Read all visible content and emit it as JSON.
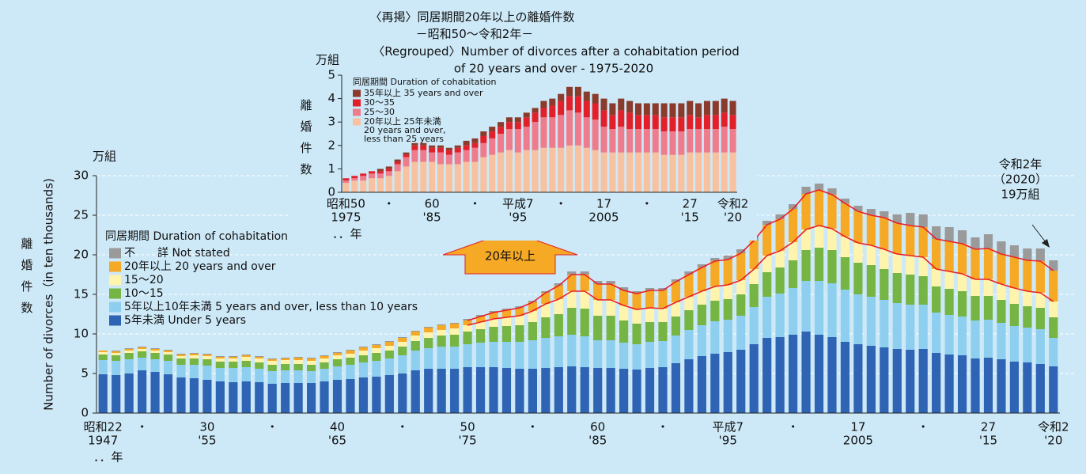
{
  "chart_data": [
    {
      "type": "bar",
      "stacked": true,
      "y_unit": "万組",
      "ylabel": "離婚件数",
      "ylabel_en": "Number of divorces（in ten thousands)",
      "x_unit": "．．年",
      "legend_title": "同居期間 Duration of cohabitation",
      "arrow_label": "20年以上",
      "callout": [
        "令和2年",
        "（2020）",
        "19万組"
      ],
      "ylim": [
        0,
        30
      ],
      "yticks": [
        0,
        5,
        10,
        15,
        20,
        25,
        30
      ],
      "grid": true,
      "outline_color": "#e8202a",
      "categories": [
        {
          "era": "昭和22",
          "year": "1947"
        },
        null,
        null,
        "・",
        null,
        null,
        null,
        null,
        {
          "era": "30",
          "year": "'55"
        },
        null,
        null,
        null,
        null,
        "・",
        null,
        null,
        null,
        null,
        {
          "era": "40",
          "year": "'65"
        },
        null,
        null,
        null,
        null,
        "・",
        null,
        null,
        null,
        null,
        {
          "era": "50",
          "year": "'75"
        },
        null,
        null,
        null,
        null,
        "・",
        null,
        null,
        null,
        null,
        {
          "era": "60",
          "year": "'85"
        },
        null,
        null,
        null,
        null,
        "・",
        null,
        null,
        null,
        null,
        {
          "era": "平成7",
          "year": "'95"
        },
        null,
        null,
        null,
        null,
        "・",
        null,
        null,
        null,
        null,
        {
          "era": "17",
          "year": "2005"
        },
        null,
        null,
        null,
        null,
        "・",
        null,
        null,
        null,
        null,
        {
          "era": "27",
          "year": "'15"
        },
        null,
        null,
        null,
        null,
        {
          "era": "令和2",
          "year": "'20"
        }
      ],
      "series": [
        {
          "name": "5年未満 Under 5 years",
          "color": "#2f63b3",
          "values": [
            4.9,
            4.8,
            5.0,
            5.4,
            5.2,
            4.9,
            4.5,
            4.4,
            4.2,
            4.0,
            3.9,
            4.0,
            3.9,
            3.7,
            3.8,
            3.8,
            3.8,
            4.0,
            4.2,
            4.3,
            4.5,
            4.6,
            4.8,
            5.0,
            5.4,
            5.6,
            5.6,
            5.6,
            5.8,
            5.8,
            5.8,
            5.7,
            5.6,
            5.6,
            5.7,
            5.8,
            5.9,
            5.8,
            5.7,
            5.7,
            5.6,
            5.5,
            5.7,
            5.8,
            6.3,
            6.8,
            7.2,
            7.5,
            7.7,
            8.0,
            8.7,
            9.5,
            9.6,
            9.9,
            10.3,
            9.9,
            9.6,
            9.0,
            8.7,
            8.5,
            8.3,
            8.1,
            8.0,
            8.1,
            7.6,
            7.4,
            7.3,
            6.9,
            7.0,
            6.8,
            6.5,
            6.4,
            6.2,
            5.9
          ]
        },
        {
          "name": "5年以上10年未満 5 years and over, less than 10 years",
          "color": "#8ecff0",
          "values": [
            1.8,
            1.8,
            1.8,
            1.6,
            1.6,
            1.7,
            1.6,
            1.7,
            1.8,
            1.7,
            1.8,
            1.8,
            1.7,
            1.6,
            1.6,
            1.6,
            1.5,
            1.6,
            1.7,
            1.8,
            1.9,
            2.0,
            2.1,
            2.3,
            2.5,
            2.6,
            2.8,
            2.8,
            2.9,
            3.1,
            3.2,
            3.3,
            3.4,
            3.6,
            3.8,
            3.9,
            4.0,
            3.9,
            3.5,
            3.5,
            3.3,
            3.2,
            3.3,
            3.3,
            3.5,
            3.7,
            3.9,
            4.1,
            4.1,
            4.3,
            4.7,
            5.2,
            5.5,
            5.9,
            6.4,
            6.8,
            6.8,
            6.6,
            6.3,
            6.2,
            6.0,
            5.8,
            5.7,
            5.6,
            5.1,
            5.0,
            4.9,
            4.8,
            4.8,
            4.6,
            4.5,
            4.4,
            4.4,
            3.6
          ]
        },
        {
          "name": "10～15",
          "color": "#76b443",
          "values": [
            0.7,
            0.7,
            0.8,
            0.8,
            0.8,
            0.8,
            0.8,
            0.8,
            0.8,
            0.8,
            0.8,
            0.8,
            0.8,
            0.8,
            0.8,
            0.8,
            0.8,
            0.8,
            0.9,
            0.9,
            0.9,
            1.0,
            1.0,
            1.1,
            1.2,
            1.3,
            1.4,
            1.5,
            1.6,
            1.7,
            1.9,
            2.0,
            2.1,
            2.3,
            2.6,
            2.8,
            3.4,
            3.5,
            3.1,
            3.1,
            2.8,
            2.6,
            2.5,
            2.4,
            2.4,
            2.5,
            2.6,
            2.6,
            2.6,
            2.7,
            2.9,
            3.1,
            3.3,
            3.5,
            3.9,
            4.2,
            4.2,
            4.1,
            4.0,
            4.0,
            3.9,
            3.8,
            3.8,
            3.6,
            3.3,
            3.3,
            3.2,
            3.1,
            3.0,
            2.9,
            2.8,
            2.7,
            2.7,
            2.6
          ]
        },
        {
          "name": "15～20",
          "color": "#fff4ad",
          "values": [
            0.3,
            0.3,
            0.3,
            0.3,
            0.3,
            0.3,
            0.3,
            0.4,
            0.4,
            0.4,
            0.4,
            0.5,
            0.5,
            0.5,
            0.5,
            0.5,
            0.5,
            0.5,
            0.5,
            0.5,
            0.6,
            0.6,
            0.6,
            0.6,
            0.7,
            0.7,
            0.7,
            0.8,
            0.8,
            0.9,
            1.0,
            1.1,
            1.2,
            1.4,
            1.7,
            1.9,
            2.1,
            2.2,
            2.0,
            2.0,
            1.9,
            1.8,
            1.8,
            1.7,
            1.8,
            1.7,
            1.7,
            1.8,
            1.8,
            1.8,
            1.9,
            2.1,
            2.1,
            2.3,
            2.6,
            2.8,
            2.7,
            2.6,
            2.5,
            2.5,
            2.5,
            2.4,
            2.4,
            2.4,
            2.2,
            2.2,
            2.2,
            2.1,
            2.1,
            2.0,
            2.0,
            1.9,
            1.9,
            2.0
          ]
        },
        {
          "name": "20年以上 20 years and over",
          "color": "#f6a925",
          "values": [
            0.2,
            0.2,
            0.2,
            0.2,
            0.2,
            0.2,
            0.2,
            0.2,
            0.2,
            0.2,
            0.2,
            0.2,
            0.2,
            0.2,
            0.2,
            0.3,
            0.3,
            0.3,
            0.3,
            0.4,
            0.4,
            0.4,
            0.5,
            0.5,
            0.5,
            0.6,
            0.6,
            0.6,
            0.6,
            0.7,
            0.8,
            0.9,
            1.0,
            1.1,
            1.4,
            1.7,
            2.1,
            2.1,
            2.0,
            2.0,
            1.9,
            2.0,
            2.2,
            2.3,
            2.6,
            2.8,
            3.0,
            3.2,
            3.2,
            3.4,
            3.6,
            3.9,
            4.0,
            4.2,
            4.5,
            4.5,
            4.3,
            4.2,
            4.0,
            3.8,
            4.0,
            3.9,
            3.8,
            3.8,
            3.8,
            3.8,
            3.8,
            3.8,
            3.9,
            3.8,
            3.9,
            3.9,
            4.0,
            3.9
          ]
        },
        {
          "name": "不　　詳 Not stated",
          "color": "#9a9a9a",
          "values": [
            0,
            0.1,
            0.1,
            0.1,
            0.1,
            0.1,
            0.1,
            0.1,
            0.1,
            0.1,
            0.1,
            0.1,
            0.1,
            0.1,
            0.1,
            0.1,
            0.1,
            0.1,
            0.1,
            0.1,
            0.1,
            0.1,
            0.1,
            0.1,
            0.1,
            0.1,
            0.1,
            0.1,
            0.2,
            0.2,
            0.2,
            0.2,
            0.2,
            0.2,
            0.2,
            0.3,
            0.4,
            0.4,
            0.4,
            0.4,
            0.4,
            0.3,
            0.3,
            0.3,
            0.3,
            0.4,
            0.4,
            0.4,
            0.5,
            0.5,
            0.5,
            0.5,
            0.6,
            0.6,
            0.9,
            0.8,
            0.8,
            0.6,
            0.7,
            0.8,
            0.8,
            1.1,
            1.6,
            1.6,
            1.6,
            1.8,
            1.7,
            1.5,
            1.8,
            1.6,
            1.5,
            1.5,
            1.6,
            1.3
          ]
        }
      ]
    },
    {
      "type": "bar",
      "stacked": true,
      "title": [
        "〈再掲〉同居期間20年以上の離婚件数",
        "－昭和50～令和2年－",
        "〈Regrouped〉Number of divorces after a cohabitation period",
        "of 20 years and over - 1975-2020"
      ],
      "y_unit": "万組",
      "ylabel": "離婚件数",
      "x_unit": "．．年",
      "legend_title": "同居期間 Duration of cohabitation",
      "ylim": [
        0,
        5
      ],
      "yticks": [
        0,
        1,
        2,
        3,
        4,
        5
      ],
      "grid": false,
      "categories": [
        {
          "era": "昭和50",
          "year": "1975"
        },
        null,
        null,
        null,
        null,
        "・",
        null,
        null,
        null,
        null,
        {
          "era": "60",
          "year": "'85"
        },
        null,
        null,
        null,
        null,
        "・",
        null,
        null,
        null,
        null,
        {
          "era": "平成7",
          "year": "'95"
        },
        null,
        null,
        null,
        null,
        "・",
        null,
        null,
        null,
        null,
        {
          "era": "17",
          "year": "2005"
        },
        null,
        null,
        null,
        null,
        "・",
        null,
        null,
        null,
        null,
        {
          "era": "27",
          "year": "'15"
        },
        null,
        null,
        null,
        null,
        {
          "era": "令和2",
          "year": "'20"
        }
      ],
      "series": [
        {
          "name": [
            "20年以上 25年未満",
            "20 years and over,",
            "less than 25 years"
          ],
          "color": "#f8c19f",
          "values": [
            0.4,
            0.5,
            0.5,
            0.6,
            0.6,
            0.7,
            0.9,
            1.1,
            1.3,
            1.3,
            1.3,
            1.2,
            1.2,
            1.2,
            1.3,
            1.3,
            1.5,
            1.6,
            1.7,
            1.8,
            1.7,
            1.8,
            1.8,
            1.9,
            1.9,
            1.9,
            2.0,
            2.0,
            1.9,
            1.8,
            1.7,
            1.7,
            1.7,
            1.7,
            1.7,
            1.7,
            1.7,
            1.6,
            1.6,
            1.6,
            1.7,
            1.7,
            1.7,
            1.7,
            1.7,
            1.7
          ]
        },
        {
          "name": "25～30",
          "color": "#ee7c8c",
          "values": [
            0.1,
            0.1,
            0.2,
            0.2,
            0.2,
            0.2,
            0.3,
            0.4,
            0.5,
            0.5,
            0.4,
            0.5,
            0.4,
            0.5,
            0.5,
            0.6,
            0.6,
            0.7,
            0.8,
            0.9,
            1.0,
            1.0,
            1.2,
            1.3,
            1.3,
            1.4,
            1.5,
            1.4,
            1.3,
            1.3,
            1.1,
            1.0,
            1.1,
            1.0,
            1.0,
            1.0,
            1.0,
            1.0,
            1.0,
            1.0,
            1.0,
            1.0,
            1.0,
            1.0,
            1.1,
            1.0
          ]
        },
        {
          "name": "30～35",
          "color": "#e3202a",
          "values": [
            0.1,
            0.1,
            0.1,
            0.1,
            0.1,
            0.1,
            0.1,
            0.1,
            0.2,
            0.2,
            0.2,
            0.2,
            0.2,
            0.2,
            0.2,
            0.2,
            0.3,
            0.3,
            0.3,
            0.3,
            0.3,
            0.4,
            0.4,
            0.4,
            0.5,
            0.6,
            0.6,
            0.7,
            0.7,
            0.7,
            0.7,
            0.6,
            0.7,
            0.7,
            0.6,
            0.6,
            0.6,
            0.6,
            0.6,
            0.6,
            0.6,
            0.5,
            0.6,
            0.6,
            0.6,
            0.6
          ]
        },
        {
          "name": "35年以上 35 years and over",
          "color": "#8a3b2b",
          "values": [
            0,
            0,
            0,
            0,
            0.1,
            0.1,
            0.1,
            0.1,
            0.1,
            0.1,
            0.1,
            0.1,
            0.1,
            0.1,
            0.2,
            0.2,
            0.2,
            0.2,
            0.2,
            0.2,
            0.2,
            0.2,
            0.2,
            0.3,
            0.3,
            0.3,
            0.4,
            0.4,
            0.4,
            0.4,
            0.5,
            0.5,
            0.5,
            0.5,
            0.5,
            0.5,
            0.5,
            0.6,
            0.6,
            0.6,
            0.6,
            0.6,
            0.6,
            0.6,
            0.6,
            0.6
          ]
        }
      ]
    }
  ]
}
